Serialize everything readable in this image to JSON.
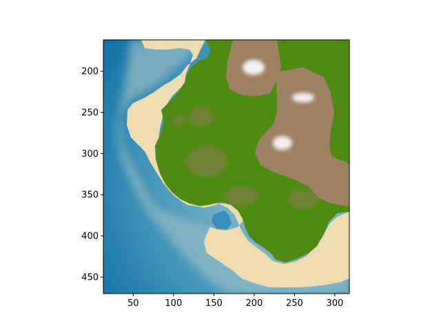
{
  "chart_data": {
    "type": "heatmap",
    "title": "",
    "xlabel": "",
    "ylabel": "",
    "xlim": [
      13,
      318
    ],
    "ylim": [
      470,
      162
    ],
    "y_inverted": true,
    "x_ticks": [
      50,
      100,
      150,
      200,
      250,
      300
    ],
    "y_ticks": [
      200,
      250,
      300,
      350,
      400,
      450
    ],
    "grid": false,
    "colors": {
      "deep_water": "#0a6ea3",
      "shallow_water": "#5aa3c0",
      "sand": "#ecdcb0",
      "grass": "#4f8b12",
      "mountain": "#9c8263",
      "snow": "#f1f1f1"
    }
  }
}
